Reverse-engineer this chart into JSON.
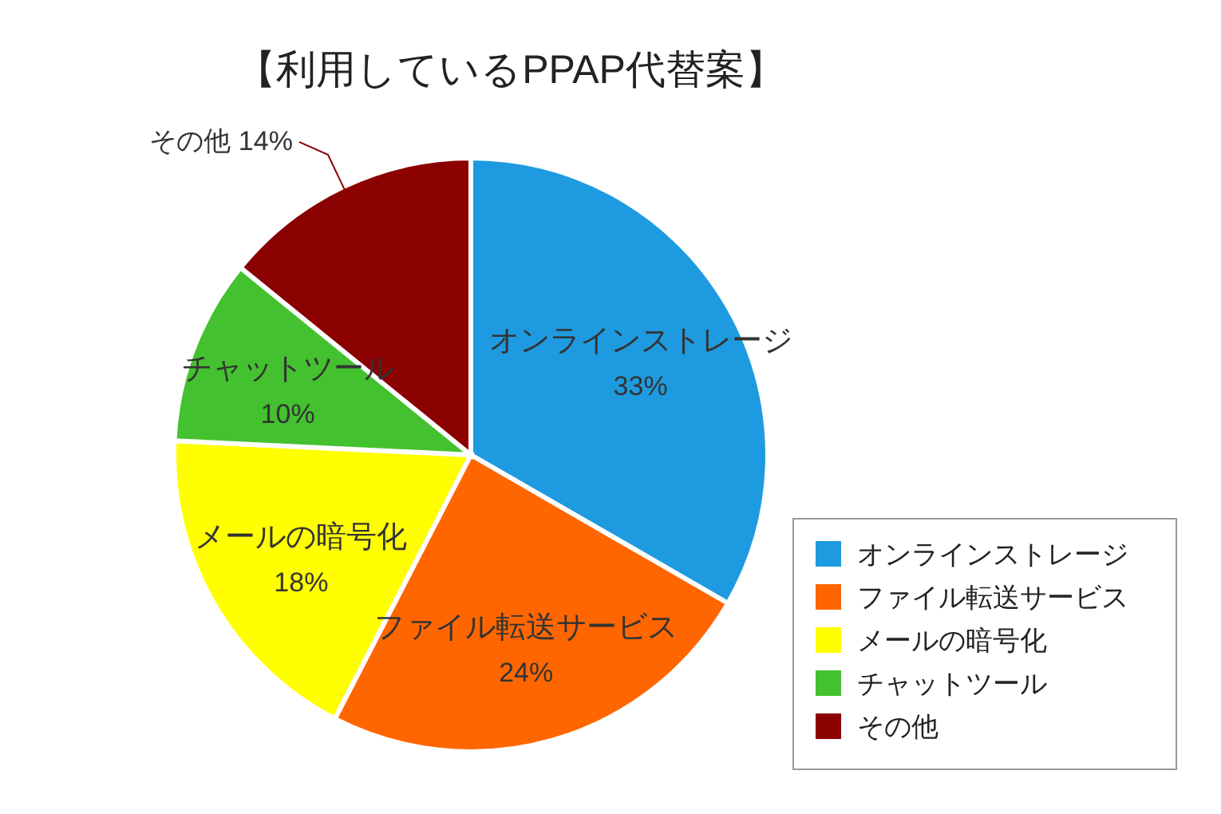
{
  "chart_data": {
    "type": "pie",
    "title": "【利用しているPPAP代替案】",
    "categories": [
      "オンラインストレージ",
      "ファイル転送サービス",
      "メールの暗号化",
      "チャットツール",
      "その他"
    ],
    "values": [
      33,
      24,
      18,
      10,
      14
    ],
    "colors": [
      "#1e9be0",
      "#ff6600",
      "#ffff00",
      "#44c12e",
      "#8b0000"
    ],
    "value_labels": [
      "33%",
      "24%",
      "18%",
      "10%",
      "14%"
    ],
    "legend": "bottom right"
  }
}
